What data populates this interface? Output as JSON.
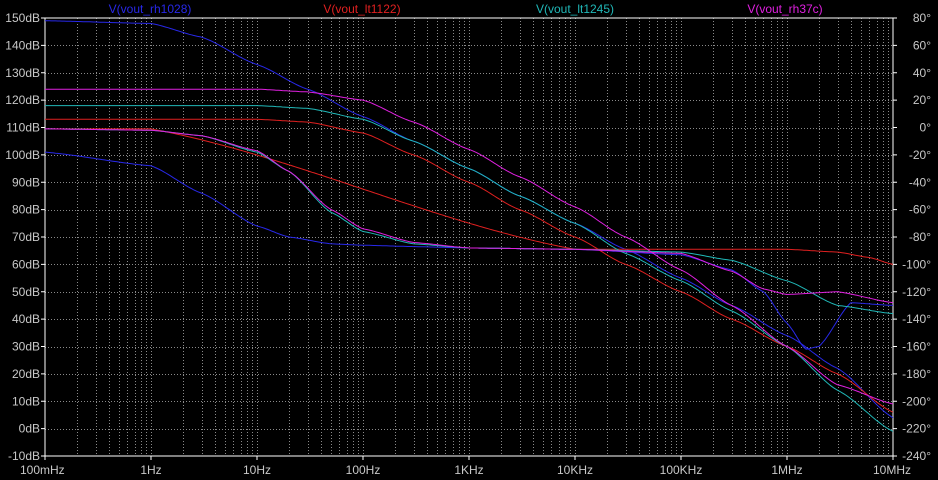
{
  "chart_data": {
    "type": "line",
    "title": "",
    "x_scale": "log",
    "xlim": [
      0.1,
      10000000
    ],
    "ylim_left": [
      -10,
      150
    ],
    "ylim_right": [
      -240,
      80
    ],
    "grid": true,
    "legend_position": "top",
    "x_ticks": [
      "100mHz",
      "1Hz",
      "10Hz",
      "100Hz",
      "1KHz",
      "10KHz",
      "100KHz",
      "1MHz",
      "10MHz"
    ],
    "y_ticks_left": [
      "150dB",
      "140dB",
      "130dB",
      "120dB",
      "110dB",
      "100dB",
      "90dB",
      "80dB",
      "70dB",
      "60dB",
      "50dB",
      "40dB",
      "30dB",
      "20dB",
      "10dB",
      "0dB",
      "-10dB"
    ],
    "y_ticks_right": [
      "80°",
      "60°",
      "40°",
      "20°",
      "0°",
      "-20°",
      "-40°",
      "-60°",
      "-80°",
      "-100°",
      "-120°",
      "-140°",
      "-160°",
      "-180°",
      "-200°",
      "-220°",
      "-240°"
    ],
    "series": [
      {
        "name": "V(vout_rh1028)",
        "color": "#2828e8",
        "magnitude": {
          "x": [
            0.1,
            1,
            3,
            10,
            30,
            100,
            300,
            1000,
            3000,
            10000,
            30000,
            100000,
            300000,
            1000000,
            3000000,
            10000000
          ],
          "y": [
            149,
            148,
            143,
            133,
            124,
            114,
            105,
            95,
            85,
            75,
            65.5,
            55,
            45,
            34,
            22,
            4
          ]
        },
        "phase": {
          "x": [
            0.1,
            1,
            3,
            10,
            20,
            50,
            100,
            300,
            1000,
            10000,
            100000,
            300000,
            600000,
            1000000,
            1500000,
            2000000,
            4000000,
            10000000
          ],
          "y": [
            -18,
            -28,
            -48,
            -72,
            -80,
            -85,
            -86,
            -87,
            -88,
            -89,
            -93,
            -104,
            -120,
            -143,
            -162,
            -160,
            -128,
            -130
          ]
        }
      },
      {
        "name": "V(vout_lt1122)",
        "color": "#e02020",
        "magnitude": {
          "x": [
            0.1,
            10,
            30,
            100,
            300,
            1000,
            3000,
            10000,
            30000,
            100000,
            300000,
            1000000,
            3000000,
            10000000
          ],
          "y": [
            113,
            113,
            112,
            108,
            100,
            90,
            80,
            70,
            60,
            50,
            40,
            30,
            20,
            6
          ]
        },
        "phase": {
          "x": [
            0.1,
            1,
            10000,
            100000,
            1000000,
            3000000,
            6000000,
            10000000
          ],
          "y": [
            -1,
            -1,
            -89,
            -89,
            -89,
            -91,
            -95,
            -100
          ]
        }
      },
      {
        "name": "V(vout_lt1245)",
        "color": "#20b8b8",
        "magnitude": {
          "x": [
            0.1,
            10,
            30,
            100,
            300,
            1000,
            3000,
            10000,
            30000,
            100000,
            300000,
            1000000,
            3000000,
            10000000
          ],
          "y": [
            118,
            118,
            117,
            113,
            105,
            95,
            85,
            75,
            64,
            54,
            43,
            30,
            14,
            -1
          ]
        },
        "phase": {
          "x": [
            0.1,
            1,
            3,
            10,
            20,
            50,
            100,
            300,
            1000,
            10000,
            100000,
            300000,
            1000000,
            3000000,
            10000000
          ],
          "y": [
            -1,
            -2,
            -6,
            -18,
            -32,
            -62,
            -76,
            -85,
            -88,
            -89,
            -91,
            -97,
            -112,
            -130,
            -136
          ]
        }
      },
      {
        "name": "V(vout_rh37c)",
        "color": "#e020e0",
        "magnitude": {
          "x": [
            0.1,
            10,
            30,
            100,
            300,
            1000,
            3000,
            10000,
            30000,
            100000,
            300000,
            1000000,
            3000000,
            10000000
          ],
          "y": [
            124,
            124,
            123,
            120,
            112,
            102,
            92,
            81,
            70,
            58,
            45,
            30,
            16,
            9
          ]
        },
        "phase": {
          "x": [
            0.1,
            1,
            3,
            10,
            20,
            50,
            100,
            300,
            1000,
            10000,
            100000,
            300000,
            600000,
            1000000,
            3000000,
            10000000
          ],
          "y": [
            -1,
            -2,
            -6,
            -17,
            -32,
            -60,
            -74,
            -84,
            -88,
            -89,
            -92,
            -105,
            -118,
            -122,
            -120,
            -128
          ]
        }
      }
    ]
  }
}
